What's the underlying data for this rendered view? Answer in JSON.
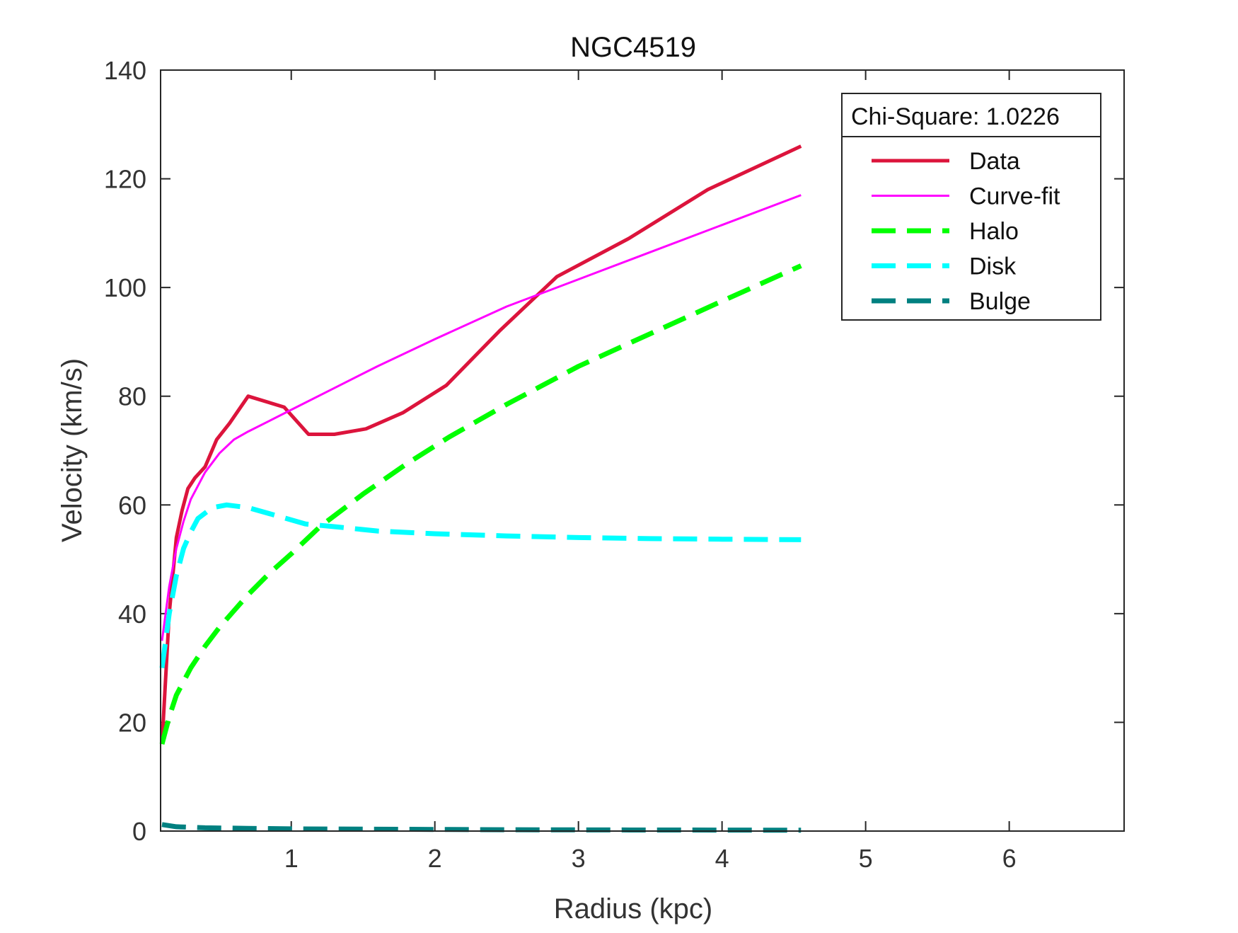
{
  "chart_data": {
    "type": "line",
    "title": "NGC4519",
    "xlabel": "Radius (kpc)",
    "ylabel": "Velocity (km/s)",
    "xlim": [
      0.09,
      6.8
    ],
    "ylim": [
      0,
      140
    ],
    "xticks": [
      1,
      2,
      3,
      4,
      5,
      6
    ],
    "yticks": [
      0,
      20,
      40,
      60,
      80,
      100,
      120,
      140
    ],
    "grid": false,
    "legend_position": "top-right",
    "legend_header": "Chi-Square: 1.0226",
    "series": [
      {
        "name": "Data",
        "color": "#dc143c",
        "style": "solid",
        "width": 5,
        "x": [
          0.1,
          0.15,
          0.2,
          0.24,
          0.28,
          0.33,
          0.4,
          0.48,
          0.57,
          0.7,
          0.95,
          1.12,
          1.3,
          1.52,
          1.78,
          2.08,
          2.45,
          2.85,
          3.35,
          3.9,
          4.55
        ],
        "y": [
          16,
          40,
          54,
          59,
          63,
          65,
          67,
          72,
          75,
          80,
          78,
          73,
          73,
          74,
          77,
          82,
          92,
          102,
          109,
          118,
          126
        ]
      },
      {
        "name": "Curve-fit",
        "color": "#ff00ff",
        "style": "solid",
        "width": 3,
        "x": [
          0.1,
          0.15,
          0.2,
          0.25,
          0.3,
          0.4,
          0.5,
          0.6,
          0.7,
          0.85,
          1.0,
          1.3,
          1.6,
          2.0,
          2.5,
          3.0,
          3.5,
          4.0,
          4.55
        ],
        "y": [
          35,
          45,
          52,
          57,
          61,
          66,
          69.5,
          72,
          73.5,
          75.5,
          77.5,
          81.5,
          85.5,
          90.5,
          96.5,
          101.5,
          106.5,
          111.5,
          117
        ]
      },
      {
        "name": "Halo",
        "color": "#00ff00",
        "style": "dashed",
        "width": 7,
        "x": [
          0.1,
          0.15,
          0.2,
          0.3,
          0.4,
          0.5,
          0.6,
          0.7,
          0.85,
          1.0,
          1.2,
          1.5,
          1.8,
          2.1,
          2.5,
          3.0,
          3.5,
          4.0,
          4.55
        ],
        "y": [
          16,
          21,
          25,
          30,
          34,
          37.5,
          40.5,
          43.5,
          47.5,
          51,
          56,
          62,
          67.5,
          72.5,
          78.5,
          85.5,
          91.5,
          97.5,
          104
        ]
      },
      {
        "name": "Disk",
        "color": "#00ffff",
        "style": "dashed",
        "width": 7,
        "x": [
          0.1,
          0.15,
          0.2,
          0.25,
          0.3,
          0.35,
          0.45,
          0.55,
          0.7,
          0.9,
          1.1,
          1.3,
          1.6,
          2.0,
          2.5,
          3.0,
          3.5,
          4.0,
          4.55
        ],
        "y": [
          30,
          40,
          47,
          52,
          55,
          57.5,
          59.5,
          60,
          59.5,
          58,
          56.5,
          56,
          55.2,
          54.7,
          54.3,
          54,
          53.8,
          53.7,
          53.6
        ]
      },
      {
        "name": "Bulge",
        "color": "#008080",
        "style": "dashed",
        "width": 7,
        "x": [
          0.1,
          0.2,
          0.4,
          0.7,
          1.0,
          1.5,
          2.0,
          2.5,
          3.0,
          3.5,
          4.0,
          4.55
        ],
        "y": [
          1.2,
          0.8,
          0.6,
          0.5,
          0.4,
          0.35,
          0.3,
          0.25,
          0.22,
          0.2,
          0.18,
          0.15
        ]
      }
    ]
  }
}
